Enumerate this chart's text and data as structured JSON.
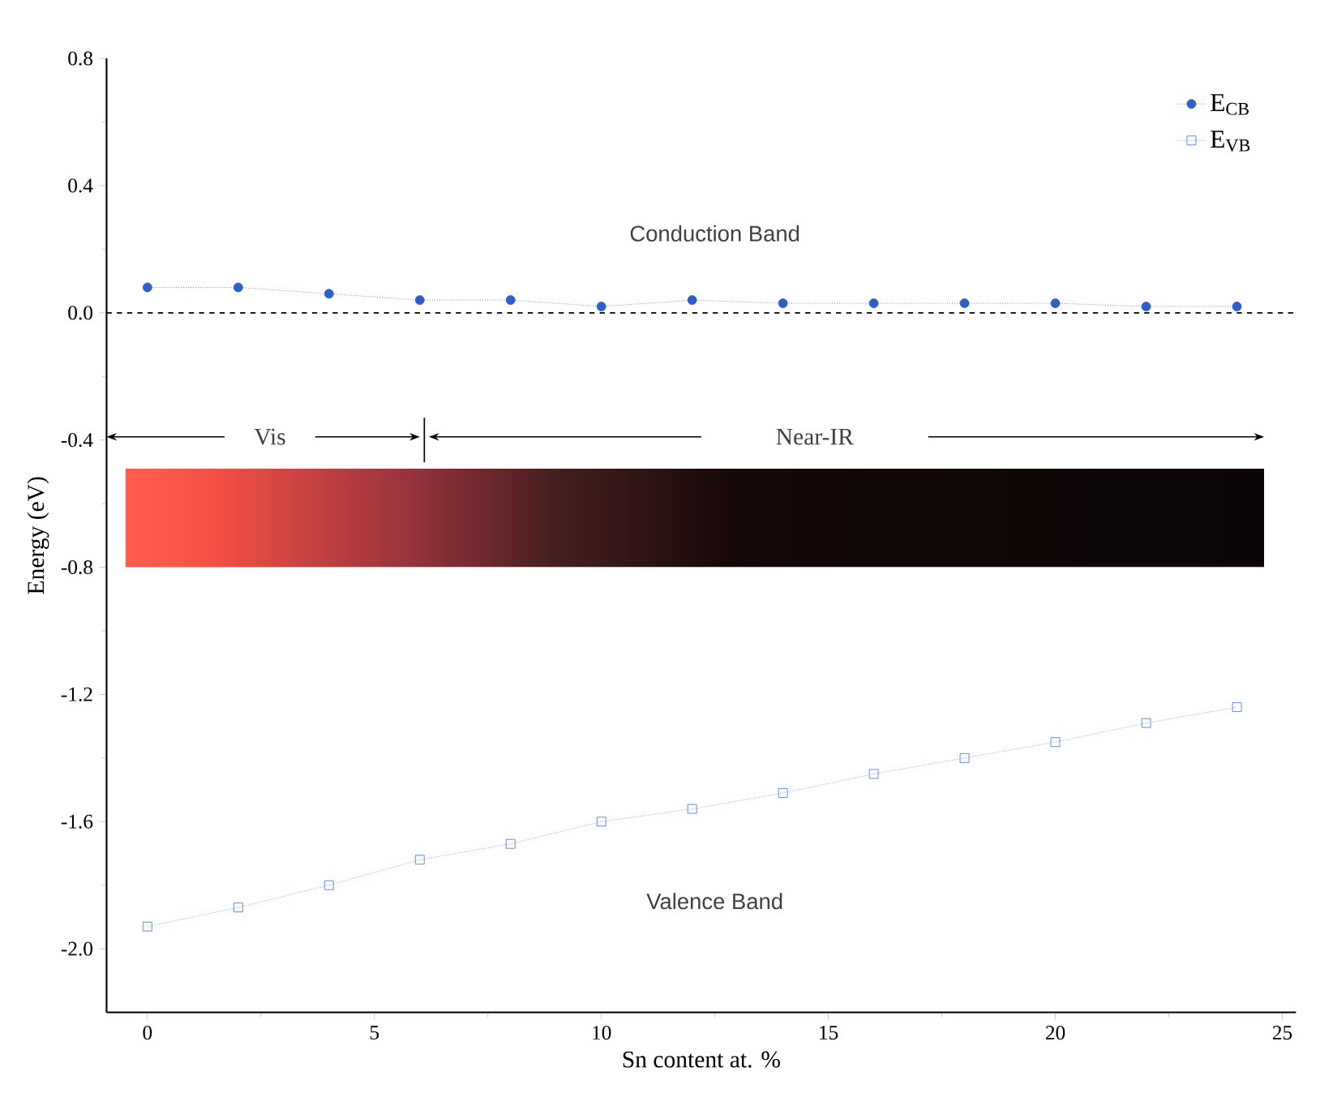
{
  "chart_data": {
    "type": "line",
    "xlabel": "Sn content at. %",
    "ylabel": "Energy (eV)",
    "x": [
      0,
      2,
      4,
      6,
      8,
      10,
      12,
      14,
      16,
      18,
      20,
      22,
      24
    ],
    "series": [
      {
        "name": "E$_{CB}$",
        "color": "#2f5fc4",
        "marker": "circle",
        "line_style": "dotted",
        "values": [
          0.08,
          0.08,
          0.06,
          0.04,
          0.04,
          0.02,
          0.04,
          0.03,
          0.03,
          0.03,
          0.03,
          0.02,
          0.02
        ]
      },
      {
        "name": "E$_{VB}$",
        "color": "#4a78d8",
        "marker": "square",
        "line_style": "dotted",
        "values": [
          -1.93,
          -1.87,
          -1.8,
          -1.72,
          -1.67,
          -1.6,
          -1.56,
          -1.51,
          -1.45,
          -1.4,
          -1.35,
          -1.29,
          -1.24
        ]
      }
    ],
    "xlim": [
      -0.9,
      25.3
    ],
    "ylim": [
      -2.2,
      0.8
    ],
    "xticks": [
      0,
      5,
      10,
      15,
      20,
      25
    ],
    "yticks": [
      {
        "value": -2.0,
        "label": "-2.0"
      },
      {
        "value": -1.6,
        "label": "-1.6"
      },
      {
        "value": -1.2,
        "label": "-1.2"
      },
      {
        "value": -0.8,
        "label": "-0.8"
      },
      {
        "value": -0.4,
        "label": "-0.4"
      },
      {
        "value": 0,
        "label": "0.0"
      },
      {
        "value": 0.4,
        "label": "0.4"
      },
      {
        "value": 0.8,
        "label": "0.8"
      }
    ],
    "bands": [
      {
        "axis": "y",
        "from": -0.8,
        "to": -0.49
      }
    ],
    "ref_lines": [
      {
        "axis": "y",
        "value": 0,
        "color": "#000000",
        "line_style": "dashed"
      }
    ],
    "annotations": [
      "Conduction Band",
      "Valence Band",
      "Vis",
      "Near-IR"
    ],
    "legend": "top right",
    "grid": false
  }
}
